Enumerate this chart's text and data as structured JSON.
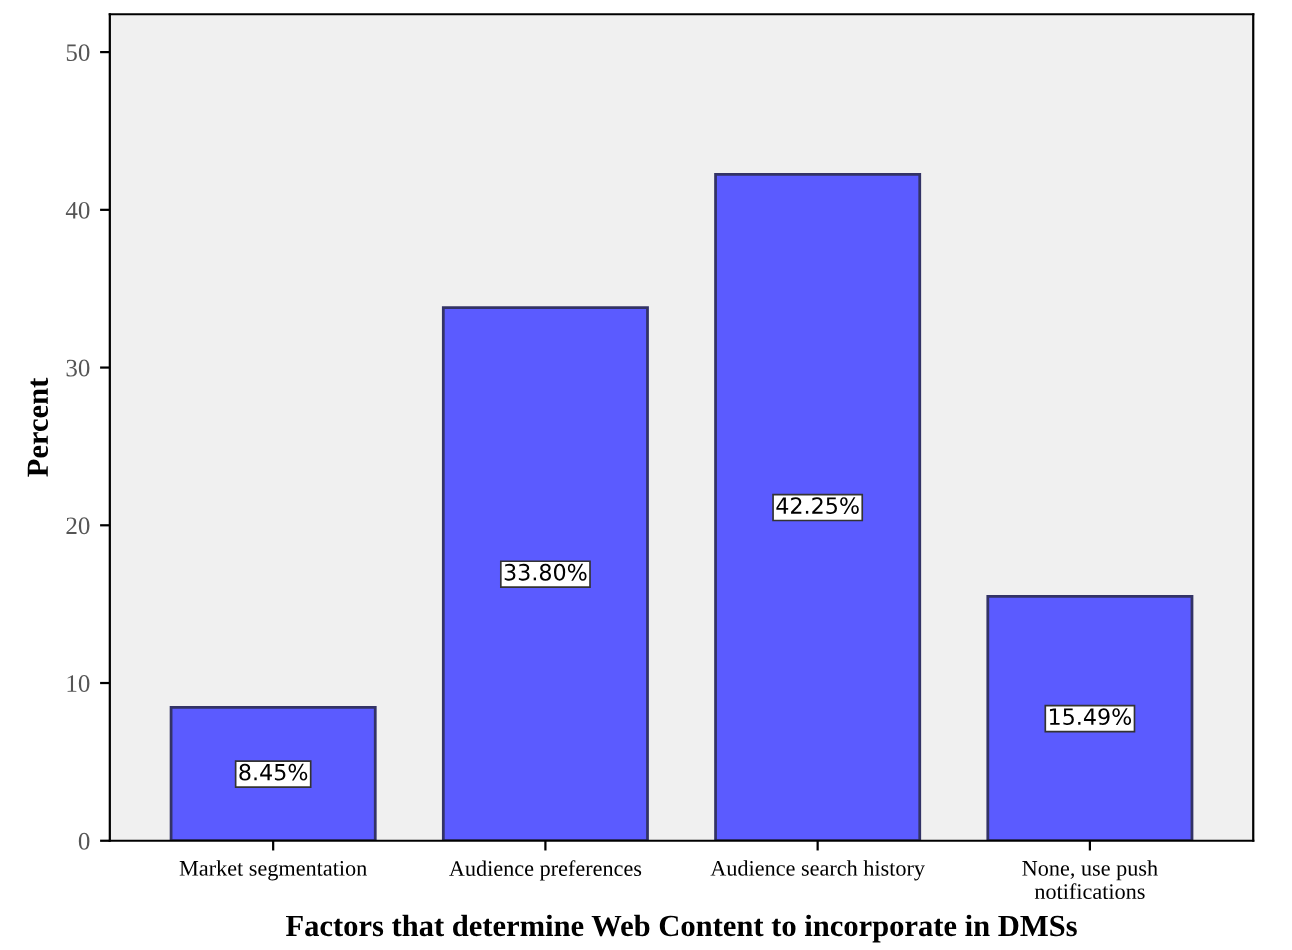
{
  "chart_data": {
    "type": "bar",
    "xlabel": "Factors that determine Web Content to incorporate in DMSs",
    "ylabel": "Percent",
    "categories": [
      "Market segmentation",
      "Audience preferences",
      "Audience search history",
      "None, use push\nnotifications"
    ],
    "values": [
      8.45,
      33.8,
      42.25,
      15.49
    ],
    "color": "#5b5bff",
    "value_labels": [
      "8.45%",
      "33.80%",
      "42.25%",
      "15.49%"
    ],
    "ylim": [
      0,
      52.4
    ],
    "yticks": [
      0,
      10,
      20,
      30,
      40,
      50
    ],
    "grid": false,
    "legend": false
  }
}
